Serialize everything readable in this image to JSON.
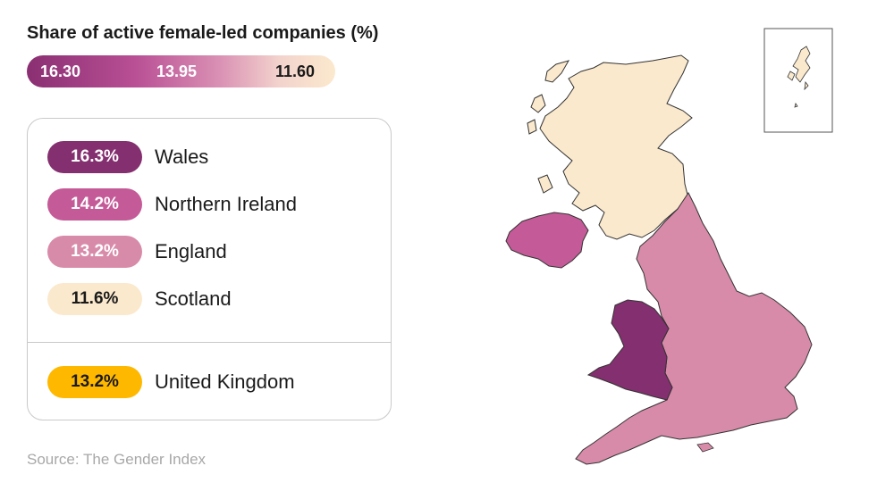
{
  "title": "Share of active female-led companies (%)",
  "scale": {
    "max": "16.30",
    "mid": "13.95",
    "min": "11.60",
    "colors": [
      "#8a2f72",
      "#fbe9cd"
    ]
  },
  "regions": [
    {
      "name": "Wales",
      "value": "16.3%",
      "color": "#842f6f",
      "text_color": "#ffffff"
    },
    {
      "name": "Northern Ireland",
      "value": "14.2%",
      "color": "#c45a97",
      "text_color": "#ffffff"
    },
    {
      "name": "England",
      "value": "13.2%",
      "color": "#d88ba9",
      "text_color": "#ffffff"
    },
    {
      "name": "Scotland",
      "value": "11.6%",
      "color": "#fbe9cd",
      "text_color": "#1a1a1a"
    }
  ],
  "total": {
    "name": "United Kingdom",
    "value": "13.2%",
    "color": "#ffb800",
    "text_color": "#1a1a1a"
  },
  "source": "Source: The Gender Index"
}
